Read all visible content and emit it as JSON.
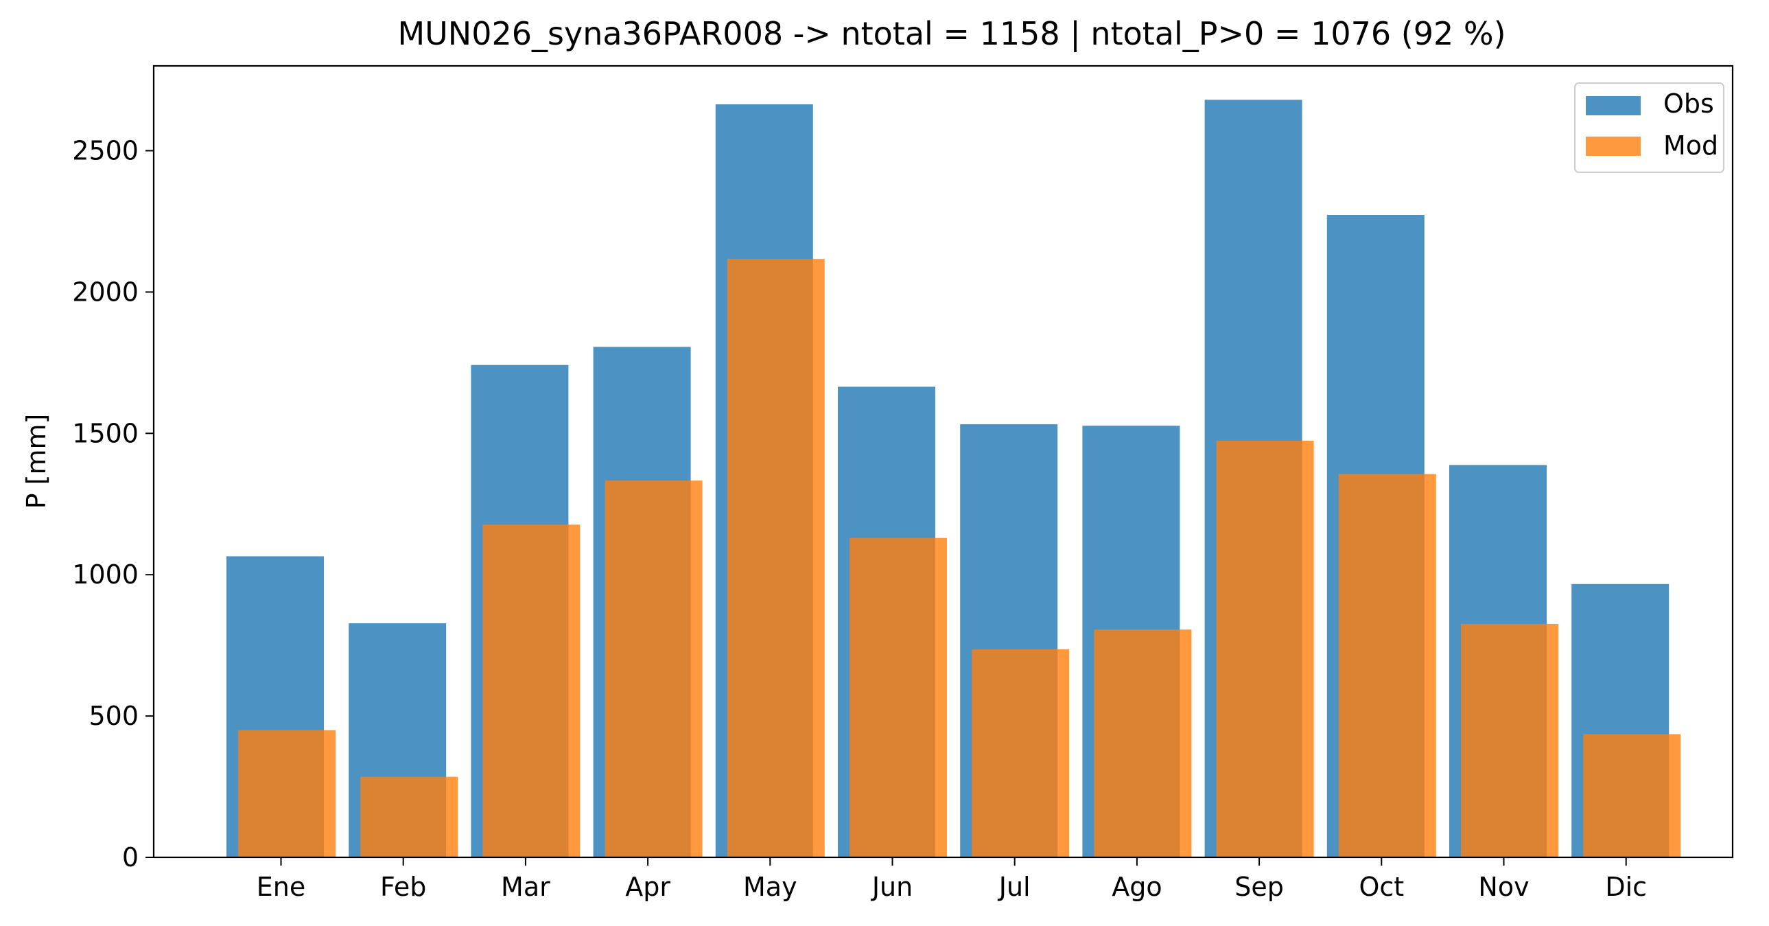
{
  "chart_data": {
    "type": "bar",
    "title": "MUN026_syna36PAR008 -> ntotal = 1158 | ntotal_P>0 = 1076 (92 %)",
    "xlabel": "",
    "ylabel": "P [mm]",
    "categories": [
      "Ene",
      "Feb",
      "Mar",
      "Apr",
      "May",
      "Jun",
      "Jul",
      "Ago",
      "Sep",
      "Oct",
      "Nov",
      "Dic"
    ],
    "series": [
      {
        "name": "Obs",
        "color": "#1f77b4",
        "values": [
          1065,
          828,
          1742,
          1806,
          2664,
          1665,
          1532,
          1527,
          2680,
          2273,
          1388,
          967
        ]
      },
      {
        "name": "Mod",
        "color": "#ff7f0e",
        "values": [
          450,
          285,
          1177,
          1333,
          2117,
          1130,
          736,
          806,
          1474,
          1356,
          826,
          436
        ]
      }
    ],
    "ylim": [
      0,
      2800
    ],
    "yticks": [
      0,
      500,
      1000,
      1500,
      2000,
      2500
    ],
    "legend": "top-right",
    "grid": false
  }
}
